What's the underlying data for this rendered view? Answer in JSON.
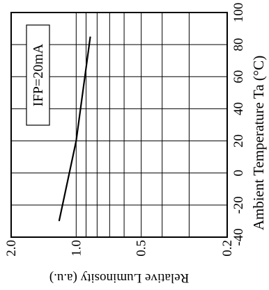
{
  "chart_data": {
    "type": "line",
    "orientation": "rotated-90-ccw",
    "annotation": "IFP=20mA",
    "ylabel": "Relative Luminosity (a.u.)",
    "xlabel": "Ambient Temperature Ta (°C)",
    "y_axis": {
      "scale": "log",
      "range": [
        0.2,
        2.0
      ],
      "tick_labels": [
        "2.0",
        "1.0",
        "0.5",
        "0.2"
      ],
      "tick_values": [
        2.0,
        1.0,
        0.5,
        0.2
      ],
      "minor_gridlines": [
        0.9,
        0.8,
        0.7,
        0.6,
        0.4,
        0.3
      ]
    },
    "x_axis": {
      "scale": "linear",
      "range": [
        -40,
        100
      ],
      "tick_labels": [
        "-40",
        "-20",
        "0",
        "20",
        "40",
        "60",
        "80",
        "100"
      ],
      "tick_values": [
        -40,
        -20,
        0,
        20,
        40,
        60,
        80,
        100
      ]
    },
    "grid": true,
    "series": [
      {
        "x": [
          -30,
          20,
          85
        ],
        "y": [
          1.2,
          1.0,
          0.86
        ]
      }
    ]
  }
}
